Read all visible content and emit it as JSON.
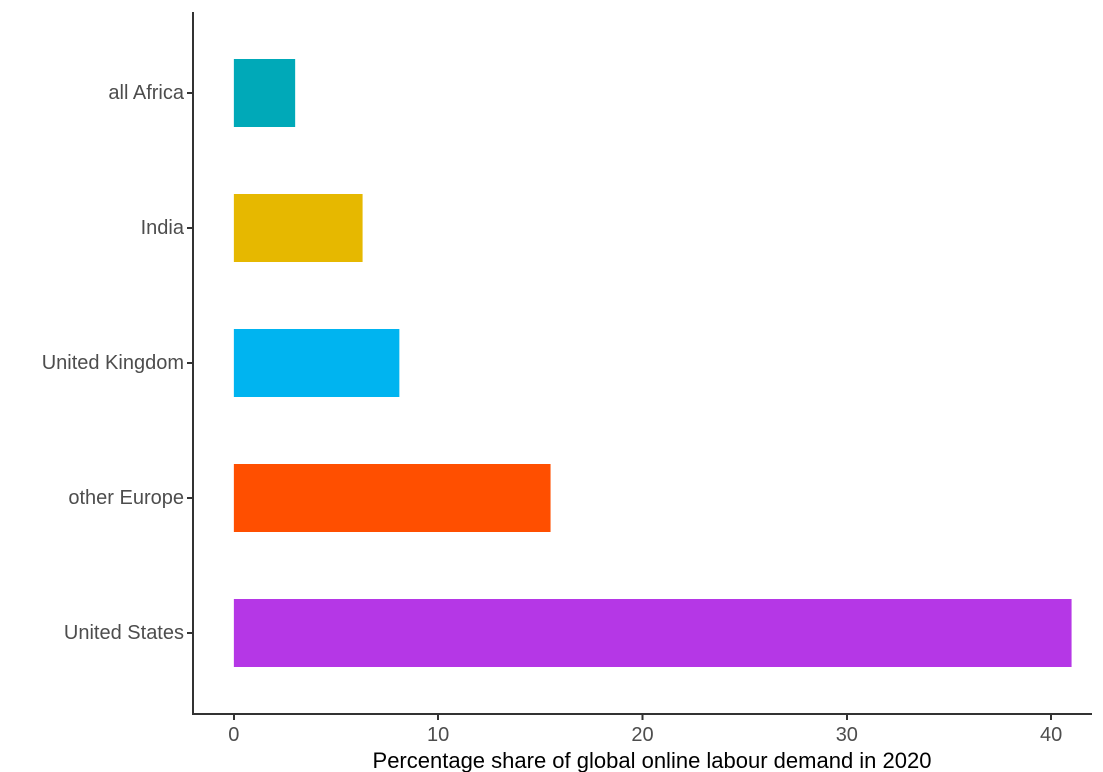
{
  "chart_data": {
    "type": "bar",
    "orientation": "horizontal",
    "categories": [
      "all Africa",
      "India",
      "United Kingdom",
      "other Europe",
      "United States"
    ],
    "values": [
      3.0,
      6.3,
      8.1,
      15.5,
      41.0
    ],
    "colors": [
      "#00A9B8",
      "#E6B800",
      "#00B4F0",
      "#FF4F00",
      "#B537E6"
    ],
    "title": "",
    "xlabel": "Percentage share of global online labour demand in 2020",
    "ylabel": "",
    "xlim": [
      -2,
      42
    ],
    "xticks": [
      0,
      10,
      20,
      30,
      40
    ],
    "xtick_labels": [
      "0",
      "10",
      "20",
      "30",
      "40"
    ],
    "grid": false,
    "legend": "none"
  }
}
